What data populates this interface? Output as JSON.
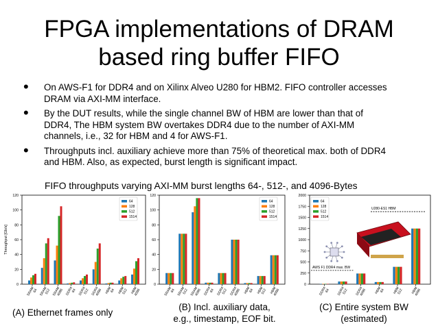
{
  "slide": {
    "title_line1": "FPGA implementations of DRAM",
    "title_line2": "based ring buffer FIFO",
    "bullets": [
      {
        "line1": "On AWS-F1 for DDR4 and on Xilinx Alveo U280 for HBM2. FIFO controller accesses",
        "line2": "DRAM via AXI-MM interface.",
        "line3": ""
      },
      {
        "line1": "By the DUT results, while the single channel BW of HBM are lower than that of",
        "line2": "DDR4, The HBM system BW overtakes DDR4 due to the number of AXI-MM",
        "line3": "channels, i.e., 32 for HBM and 4 for AWS-F1."
      },
      {
        "line1": "Throughputs incl. auxiliary achieve more than 75% of theoretical max. both of DDR4",
        "line2": "and HBM.  Also, as expected, burst length is significant impact.",
        "line3": ""
      }
    ],
    "caption": "FIFO throughputs varying AXI-MM burst lengths 64-, 512-, and 4096-Bytes",
    "sub_a": "(A) Ethernet frames only",
    "sub_b_line1": "(B) Incl. auxiliary data,",
    "sub_b_line2": "e.g., timestamp,  EOF bit.",
    "sub_c_line1": "(C) Entire system BW",
    "sub_c_line2": "(estimated)"
  },
  "colors": {
    "s64": "#1f77b4",
    "s128": "#ff7f0e",
    "s512": "#2ca02c",
    "s1514": "#d62728"
  },
  "chart_data": [
    {
      "type": "bar",
      "ylabel": "Throughput [Gb/s]",
      "ylim": [
        0,
        120
      ],
      "yticks": [
        0,
        20,
        40,
        60,
        80,
        100,
        120
      ],
      "categories": [
        "SRAM\n64",
        "SRAM\n512",
        "SRAM\n4096",
        "DDR4\n64",
        "DDR4\n512",
        "DDR4\n4096",
        "HBM\n64",
        "HBM\n512",
        "HBM\n4096"
      ],
      "series": [
        {
          "name": "64",
          "values": [
            5,
            22,
            32,
            1,
            5,
            20,
            1,
            5,
            13
          ]
        },
        {
          "name": "128",
          "values": [
            9,
            35,
            52,
            1.5,
            8,
            30,
            1.5,
            8,
            21
          ]
        },
        {
          "name": "512",
          "values": [
            12,
            55,
            92,
            2,
            11,
            48,
            2,
            10,
            31
          ]
        },
        {
          "name": "1514",
          "values": [
            14,
            62,
            105,
            2.5,
            13,
            55,
            2,
            11,
            35
          ]
        }
      ],
      "legend": "top-right"
    },
    {
      "type": "bar",
      "ylim": [
        0,
        120
      ],
      "yticks": [
        0,
        20,
        40,
        60,
        80,
        100,
        120
      ],
      "categories": [
        "SRAM\n64",
        "SRAM\n512",
        "SRAM\n4096",
        "DDR4\n64",
        "DDR4\n512",
        "DDR4\n4096",
        "HBM\n64",
        "HBM\n512",
        "HBM\n4096"
      ],
      "series": [
        {
          "name": "64",
          "values": [
            15,
            68,
            97,
            2,
            15,
            60,
            1.5,
            11,
            39
          ]
        },
        {
          "name": "128",
          "values": [
            15,
            68,
            105,
            2,
            15,
            60,
            1.5,
            11,
            39
          ]
        },
        {
          "name": "512",
          "values": [
            15,
            68,
            116,
            2,
            15,
            60,
            1.5,
            11,
            39
          ]
        },
        {
          "name": "1514",
          "values": [
            15,
            68,
            116,
            2,
            15,
            60,
            1.5,
            11,
            39
          ]
        }
      ],
      "legend": "top-right"
    },
    {
      "type": "bar",
      "ylim": [
        0,
        2000
      ],
      "yticks": [
        0,
        250,
        500,
        750,
        1000,
        1250,
        1500,
        1750,
        2000
      ],
      "categories": [
        "DDR4\n64",
        "DDR4\n512",
        "DDR4\n4096",
        "HBM\n64",
        "HBM\n512",
        "HBM\n4096"
      ],
      "series": [
        {
          "name": "64",
          "values": [
            8,
            60,
            240,
            48,
            390,
            1250
          ]
        },
        {
          "name": "128",
          "values": [
            8,
            60,
            240,
            48,
            390,
            1250
          ]
        },
        {
          "name": "512",
          "values": [
            8,
            60,
            240,
            48,
            390,
            1250
          ]
        },
        {
          "name": "1514",
          "values": [
            8,
            60,
            240,
            48,
            390,
            1250
          ]
        }
      ],
      "annotations": [
        {
          "text": "U280-ES1 HBM",
          "y": 1630
        },
        {
          "text": "AWS F1 DDR4 max. BW",
          "y": 310
        }
      ],
      "legend": "top-left"
    }
  ]
}
